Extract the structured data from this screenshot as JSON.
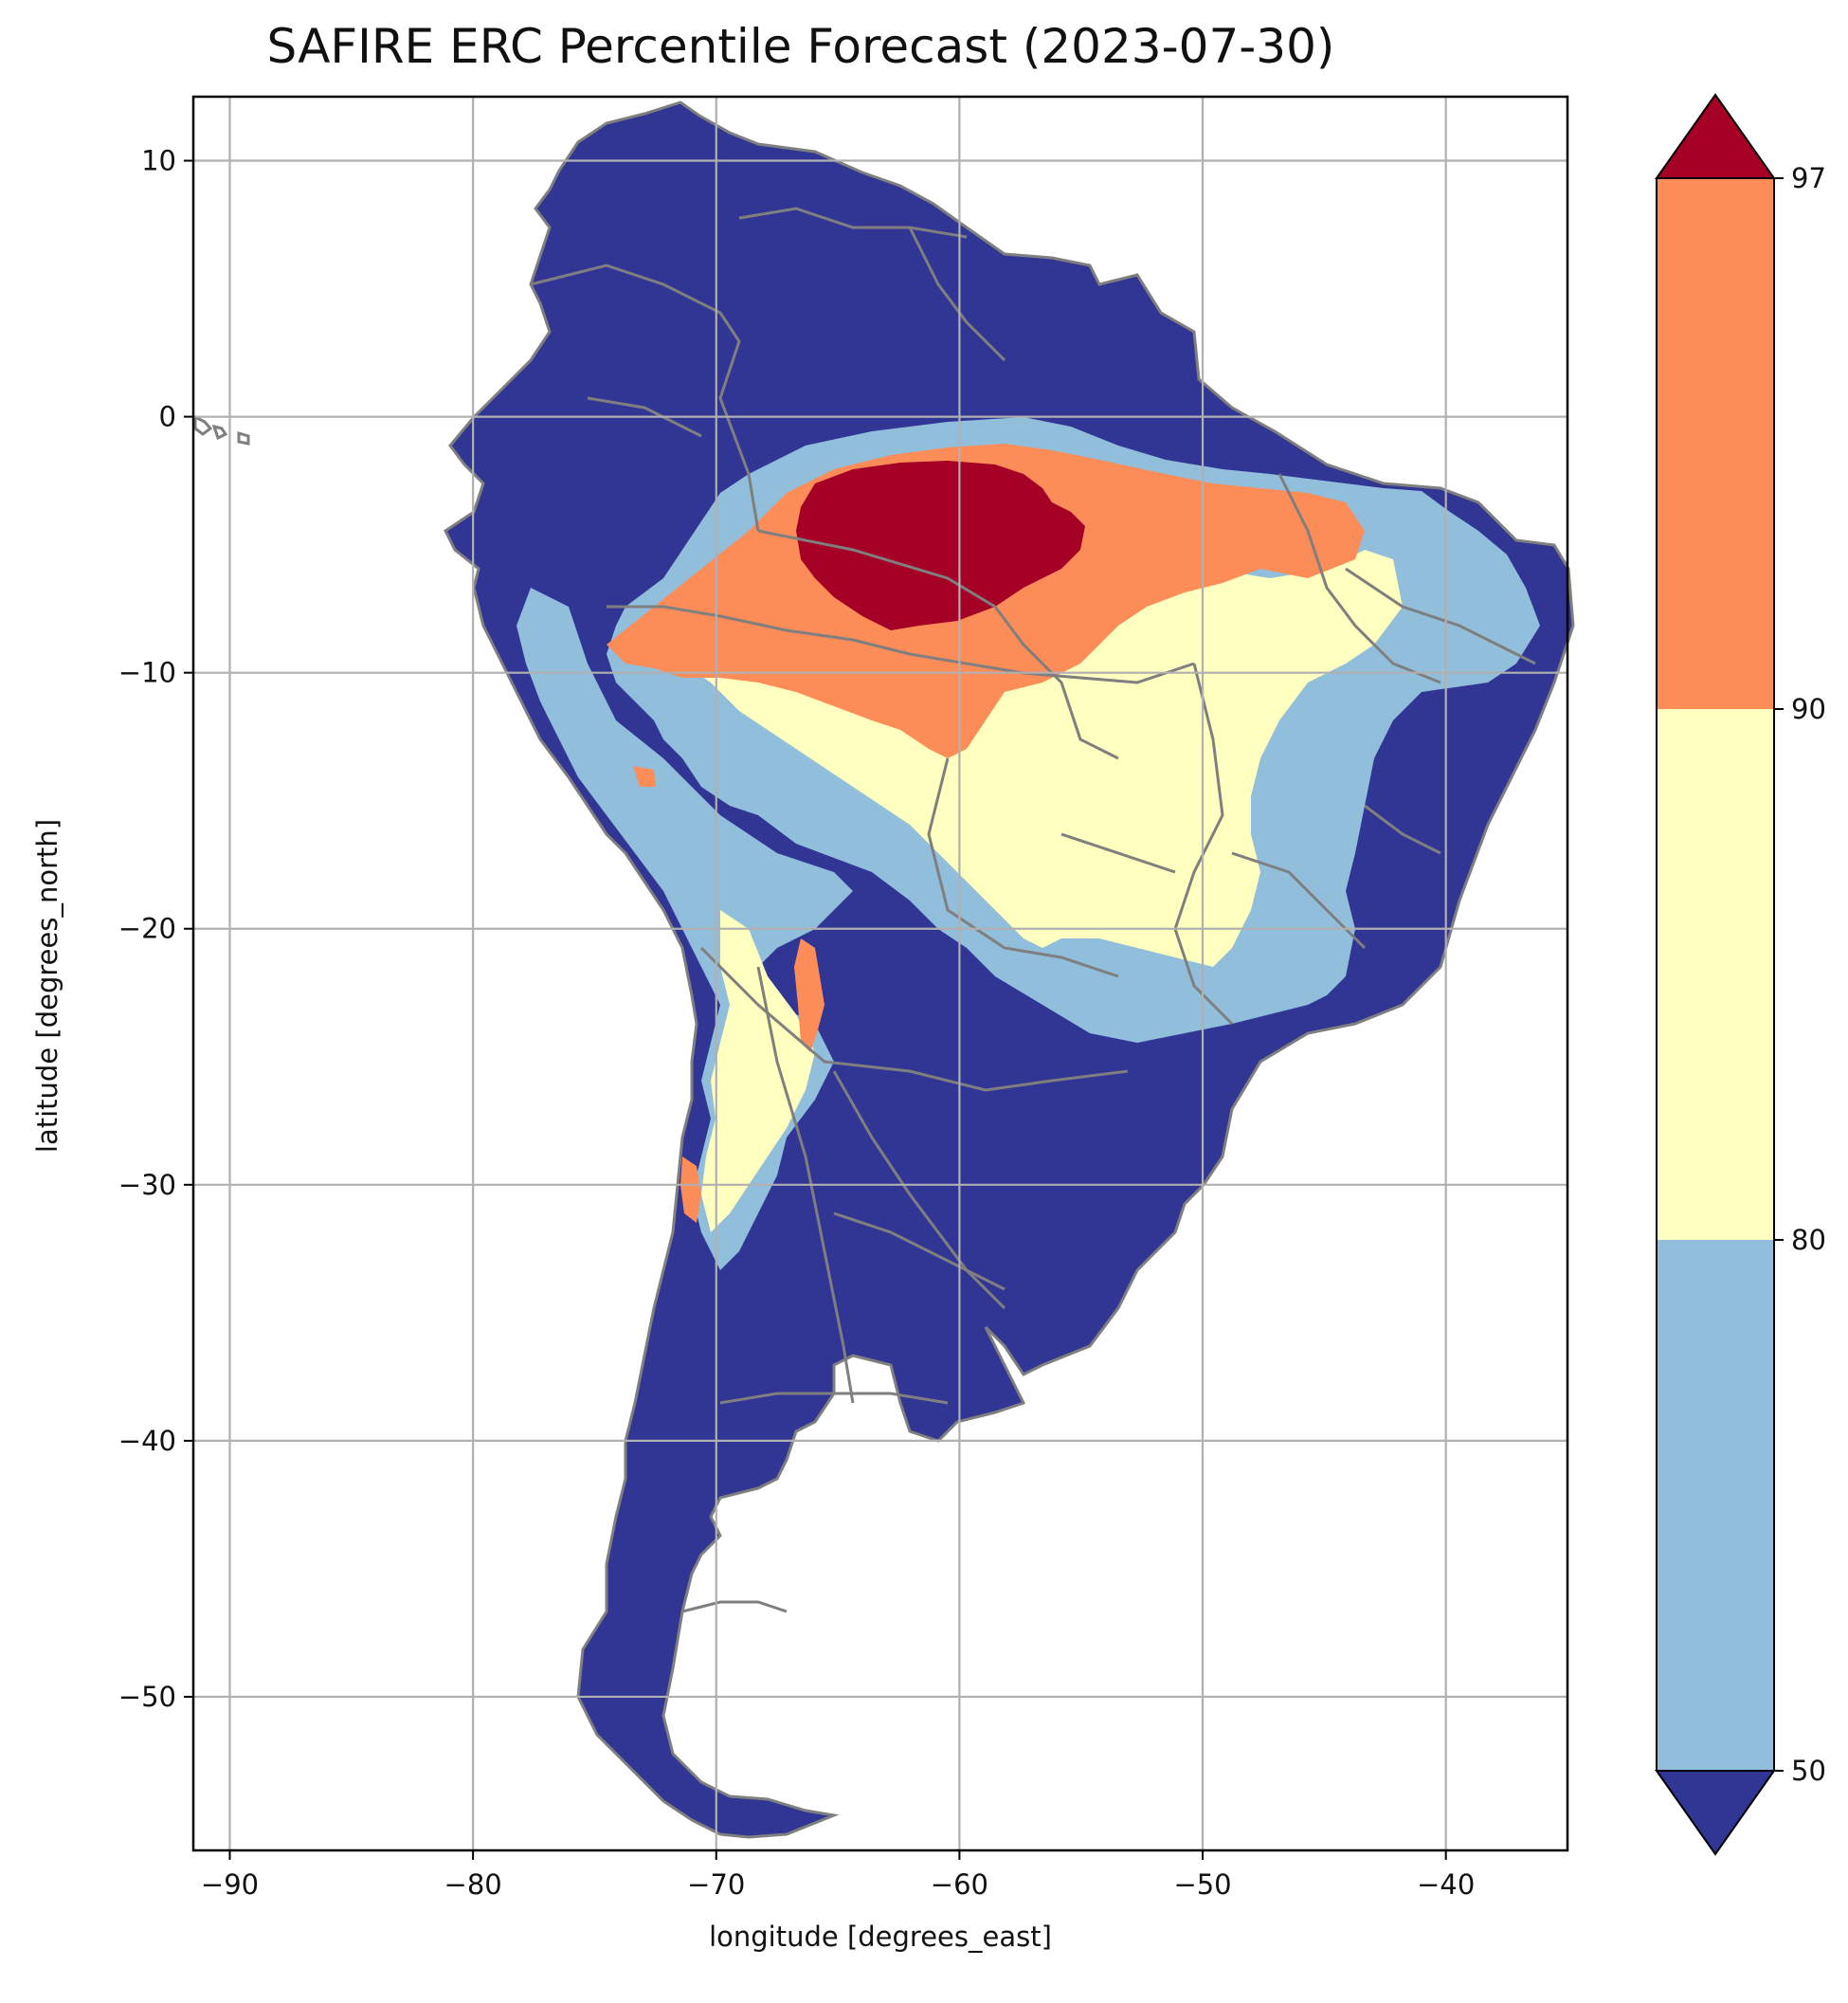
{
  "title": "SAFIRE ERC Percentile Forecast (2023-07-30)",
  "xlabel": "longitude [degrees_east]",
  "ylabel": "latitude [degrees_north]",
  "map": {
    "type": "choropleth-map",
    "region": "South America",
    "xlim": [
      -91.5,
      -35
    ],
    "ylim": [
      -56,
      12.5
    ],
    "xticks": [
      -90,
      -80,
      -70,
      -60,
      -50,
      -40
    ],
    "yticks": [
      10,
      0,
      -10,
      -20,
      -30,
      -40,
      -50
    ],
    "grid": true,
    "boundary_color": "#7f7f7f"
  },
  "colorbar": {
    "ticks": [
      50,
      80,
      90,
      97
    ],
    "tick_labels": [
      "50",
      "80",
      "90",
      "97"
    ],
    "extend": "both",
    "bins": [
      {
        "range": "<50",
        "color": "#313695"
      },
      {
        "range": "50-80",
        "color": "#91bfdb"
      },
      {
        "range": "80-90",
        "color": "#ffffbf"
      },
      {
        "range": "90-97",
        "color": "#fc8d59"
      },
      {
        "range": ">97",
        "color": "#a50026"
      }
    ]
  },
  "colors": {
    "lt50": "#313695",
    "p50_80": "#91bfdb",
    "p80_90": "#ffffbf",
    "p90_97": "#fc8d59",
    "gt97": "#a50026",
    "boundary": "#7f7f7f",
    "grid": "#b0b0b0"
  }
}
